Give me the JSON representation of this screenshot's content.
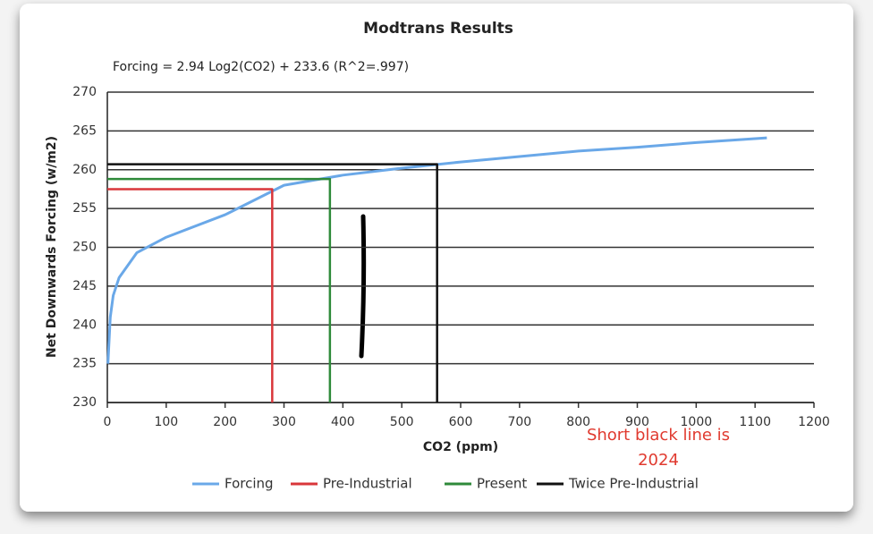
{
  "chart_data": {
    "type": "line",
    "title": "Modtrans Results",
    "subtitle": "Forcing = 2.94 Log2(CO2) + 233.6 (R^2=.997)",
    "x_label": "CO2 (ppm)",
    "y_label": "Net Downwards Forcing (w/m2)",
    "xlim": [
      0,
      1200
    ],
    "ylim": [
      230,
      270
    ],
    "xticks": [
      0,
      100,
      200,
      300,
      400,
      500,
      600,
      700,
      800,
      900,
      1000,
      1100,
      1200
    ],
    "yticks": [
      230,
      235,
      240,
      245,
      250,
      255,
      260,
      265,
      270
    ],
    "grid": true,
    "legend": "bottom",
    "annotation": [
      "Short black line is",
      "2024"
    ],
    "series": [
      {
        "name": "Forcing",
        "color": "#6aa8e8",
        "x": [
          1,
          5,
          10,
          20,
          50,
          100,
          200,
          300,
          400,
          500,
          600,
          700,
          800,
          900,
          1000,
          1120
        ],
        "values": [
          235,
          241,
          243.8,
          246.1,
          249.3,
          251.3,
          254.2,
          258,
          259.3,
          260.2,
          261,
          261.7,
          262.4,
          262.9,
          263.5,
          264.1
        ]
      },
      {
        "name": "Pre-Industrial",
        "color": "#d9363a",
        "x": [
          0,
          280,
          280
        ],
        "values": [
          257.5,
          257.5,
          230
        ]
      },
      {
        "name": "Present",
        "color": "#2f8a3a",
        "x": [
          0,
          378,
          378
        ],
        "values": [
          258.8,
          258.8,
          230
        ]
      },
      {
        "name": "Twice Pre-Industrial",
        "color": "#111111",
        "x": [
          0,
          560,
          560
        ],
        "values": [
          260.7,
          260.7,
          230
        ]
      }
    ]
  }
}
